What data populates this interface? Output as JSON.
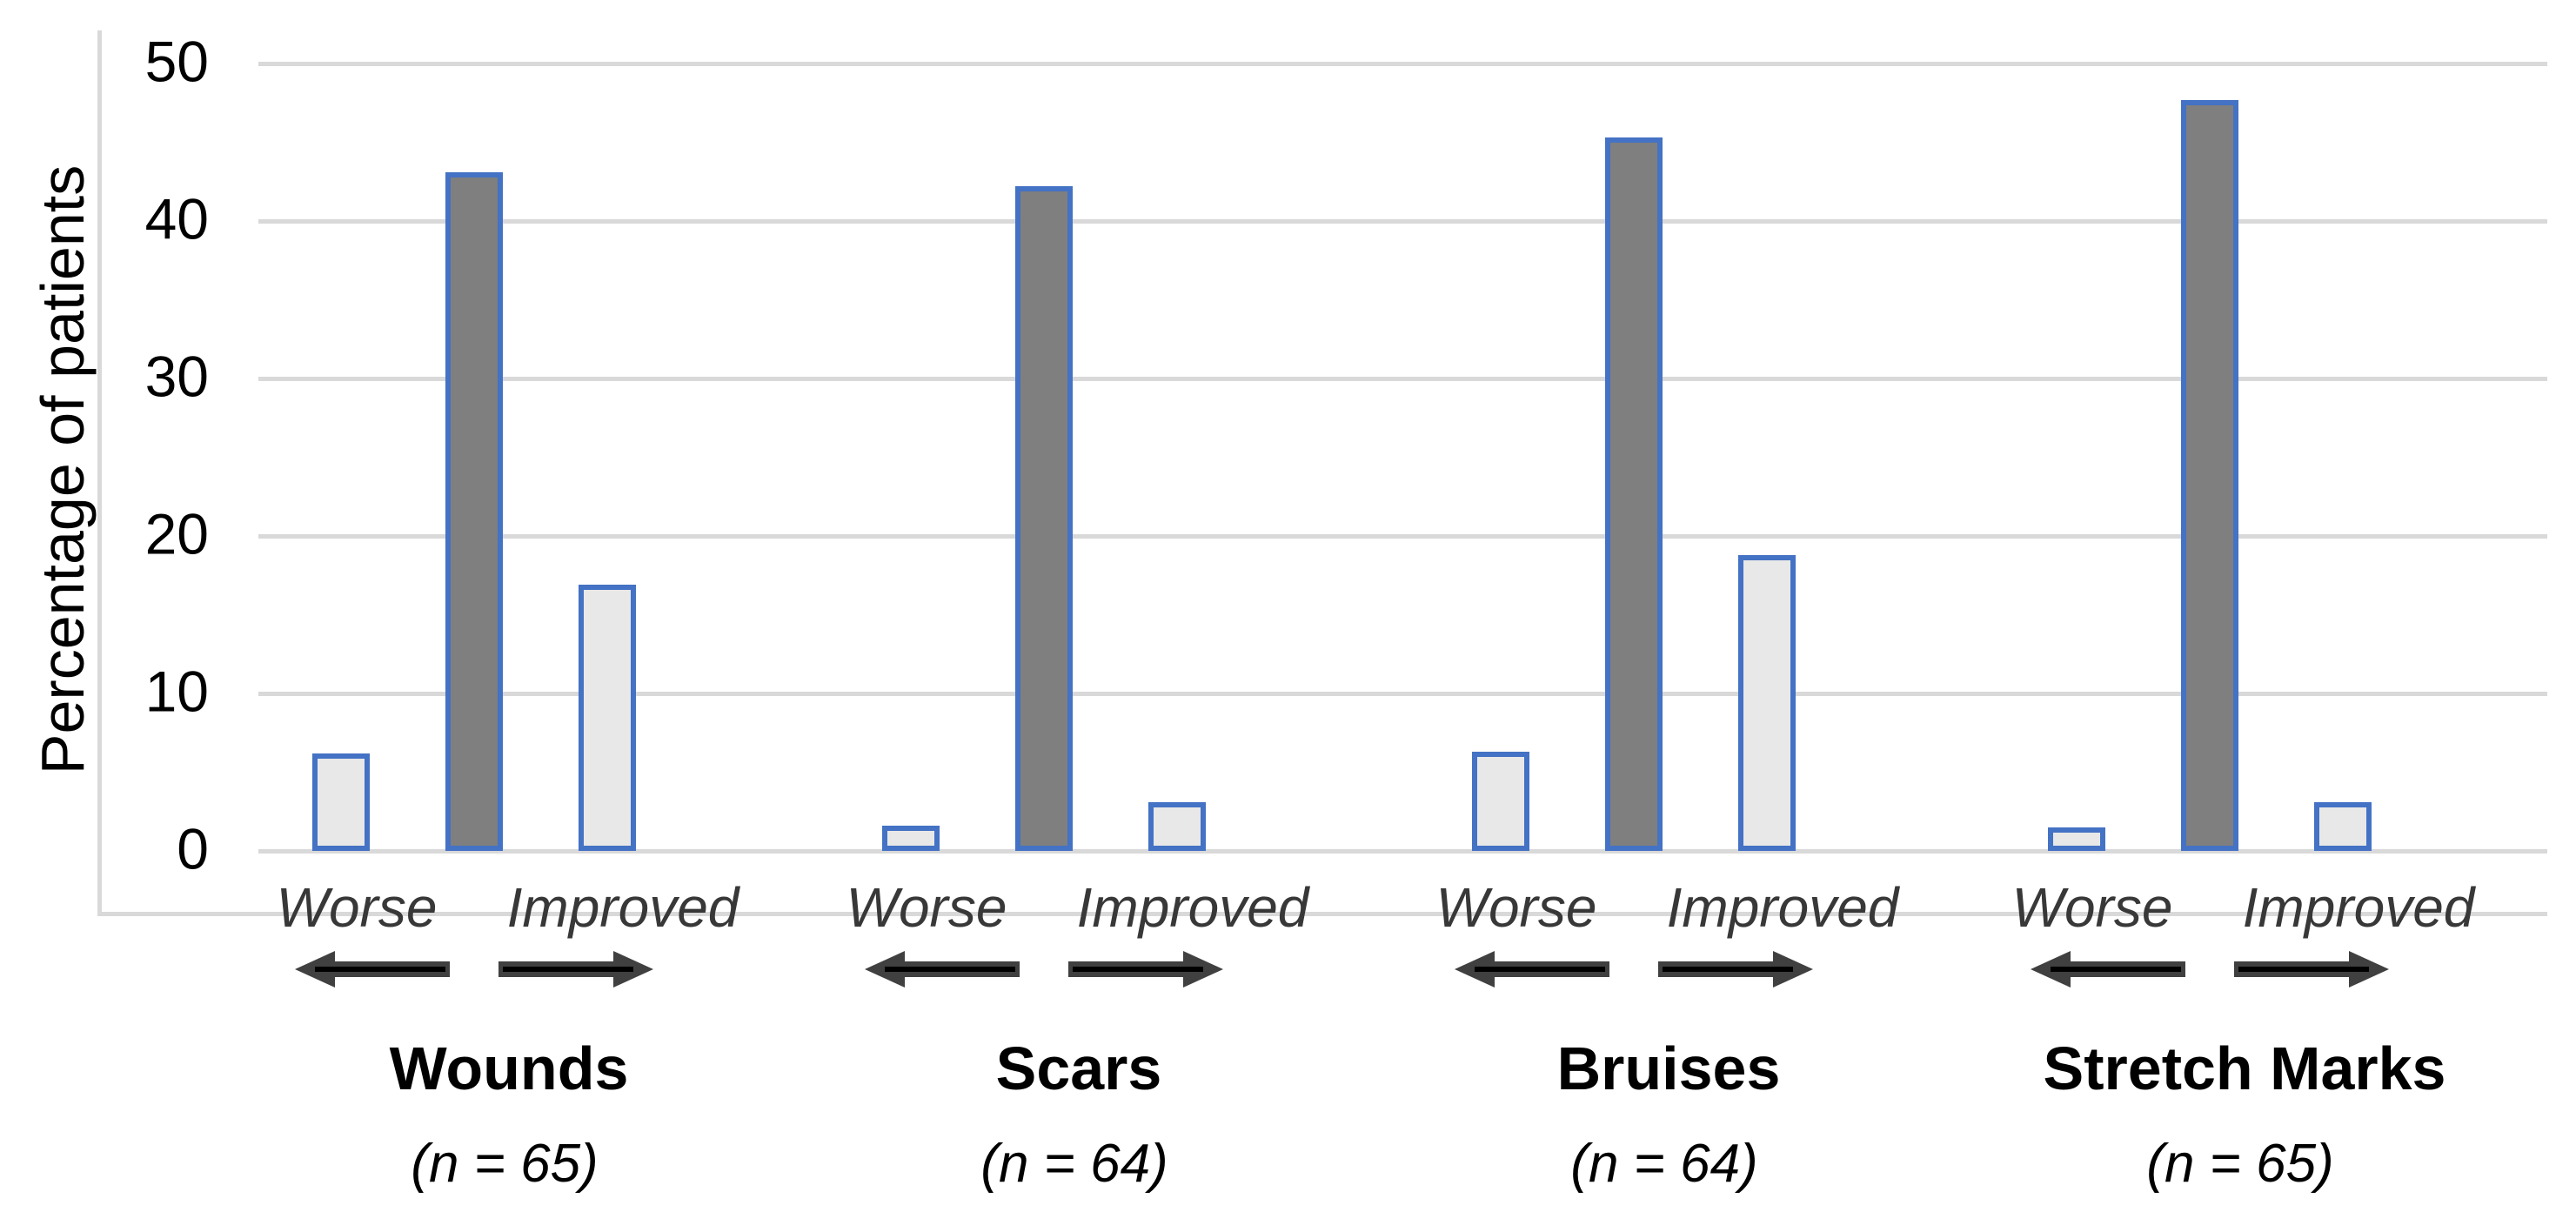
{
  "chart_data": {
    "type": "bar",
    "title": "",
    "ylabel": "Percentage of patients",
    "xlabel": "",
    "ylim": [
      0,
      50
    ],
    "yticks": [
      0,
      10,
      20,
      30,
      40,
      50
    ],
    "grid": true,
    "legend": false,
    "direction_arrows": [
      "worse-left-arrow",
      "improved-right-arrow"
    ],
    "groups": [
      {
        "name": "Wounds",
        "n_label": "(n = 65)",
        "bars": [
          {
            "label": "Worse",
            "value": 6.2,
            "shade": "light"
          },
          {
            "label": "",
            "value": 43.1,
            "shade": "dark"
          },
          {
            "label": "Improved",
            "value": 16.9,
            "shade": "light"
          }
        ]
      },
      {
        "name": "Scars",
        "n_label": "(n = 64)",
        "bars": [
          {
            "label": "Worse",
            "value": 1.6,
            "shade": "light"
          },
          {
            "label": "",
            "value": 42.2,
            "shade": "dark"
          },
          {
            "label": "Improved",
            "value": 3.1,
            "shade": "light"
          }
        ]
      },
      {
        "name": "Bruises",
        "n_label": "(n = 64)",
        "bars": [
          {
            "label": "Worse",
            "value": 6.3,
            "shade": "light"
          },
          {
            "label": "",
            "value": 45.3,
            "shade": "dark"
          },
          {
            "label": "Improved",
            "value": 18.8,
            "shade": "light"
          }
        ]
      },
      {
        "name": "Stretch Marks",
        "n_label": "(n = 65)",
        "bars": [
          {
            "label": "Worse",
            "value": 1.5,
            "shade": "light"
          },
          {
            "label": "",
            "value": 47.7,
            "shade": "dark"
          },
          {
            "label": "Improved",
            "value": 3.1,
            "shade": "light"
          }
        ]
      }
    ],
    "colors": {
      "bar_dark": "#7f7f7f",
      "bar_light": "#e8e8e8",
      "bar_border": "#4472c4",
      "gridline": "#d9d9d9",
      "axis_line": "#d9d9d9",
      "text": "#000000",
      "direction_label_text": "#383838",
      "arrow_body": "#404040",
      "arrow_inner_line": "#000000"
    }
  }
}
